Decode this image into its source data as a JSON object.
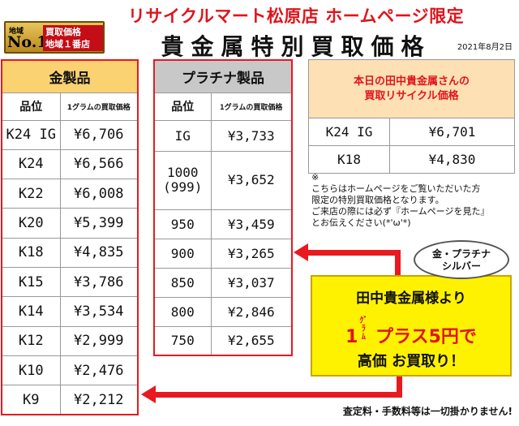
{
  "header": {
    "shop_title": "リサイクルマート松原店 ホームページ限定",
    "main_title": "貴金属特別買取価格",
    "date": "2021年8月2日"
  },
  "badge": {
    "chiiki": "地域",
    "no1": "No.1",
    "line1": "買取価格",
    "line2": "地域１番店"
  },
  "gold": {
    "title": "金製品",
    "col_grade": "品位",
    "col_price": "1グラムの買取価格",
    "rows": [
      {
        "grade": "K24 IG",
        "price": "¥6,706"
      },
      {
        "grade": "K24",
        "price": "¥6,566"
      },
      {
        "grade": "K22",
        "price": "¥6,008"
      },
      {
        "grade": "K20",
        "price": "¥5,399"
      },
      {
        "grade": "K18",
        "price": "¥4,835"
      },
      {
        "grade": "K15",
        "price": "¥3,786"
      },
      {
        "grade": "K14",
        "price": "¥3,534"
      },
      {
        "grade": "K12",
        "price": "¥2,999"
      },
      {
        "grade": "K10",
        "price": "¥2,476"
      },
      {
        "grade": "K9",
        "price": "¥2,212"
      }
    ]
  },
  "platinum": {
    "title": "プラチナ製品",
    "col_grade": "品位",
    "col_price": "1グラムの買取価格",
    "rows": [
      {
        "grade": "IG",
        "price": "¥3,733"
      },
      {
        "grade": "1000",
        "grade2": "(999)",
        "price": "¥3,652"
      },
      {
        "grade": "950",
        "price": "¥3,459"
      },
      {
        "grade": "900",
        "price": "¥3,265"
      },
      {
        "grade": "850",
        "price": "¥3,037"
      },
      {
        "grade": "800",
        "price": "¥2,846"
      },
      {
        "grade": "750",
        "price": "¥2,655"
      }
    ]
  },
  "today": {
    "title_line1": "本日の田中貴金属さんの",
    "title_line2": "買取リサイクル価格",
    "rows": [
      {
        "grade": "K24 IG",
        "price": "¥6,701"
      },
      {
        "grade": "K18",
        "price": "¥4,830"
      }
    ]
  },
  "note": {
    "mark": "※",
    "line1": "こちらはホームページをご覧いただいた方",
    "line2": "限定の特別買取価格となります。",
    "line3": "ご来店の際には必ず『ホームページを見た』",
    "line4": "とお伝えください(*'ω'*)"
  },
  "promo": {
    "bubble_line1": "金・プラチナ",
    "bubble_line2": "シルバー",
    "line1": "田中貴金属様より",
    "lead": "1",
    "unit_top": "ｸﾞﾗ",
    "unit_bottom": "ﾑ",
    "line2": "プラス5円で",
    "line3": "高価 お買取り！"
  },
  "footer": {
    "text": "査定料・手数料等は一切掛かりません!"
  },
  "colors": {
    "red": "#e8191f",
    "gold_header": "#fbd271",
    "platinum_header": "#c8c8c8",
    "promo_yellow": "#fff200"
  }
}
